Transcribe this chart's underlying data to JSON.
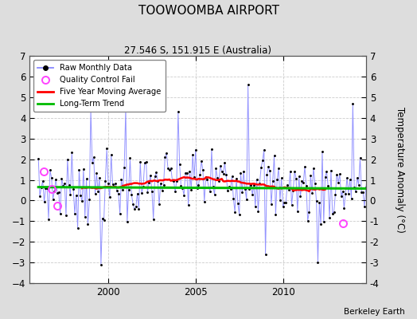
{
  "title": "TOOWOOMBA AIRPORT",
  "subtitle": "27.546 S, 151.915 E (Australia)",
  "ylabel": "Temperature Anomaly (°C)",
  "attribution": "Berkeley Earth",
  "ylim": [
    -4,
    7
  ],
  "yticks": [
    -4,
    -3,
    -2,
    -1,
    0,
    1,
    2,
    3,
    4,
    5,
    6,
    7
  ],
  "x_start_year": 1995.5,
  "x_end_year": 2014.75,
  "xticks": [
    2000,
    2005,
    2010
  ],
  "bg_color": "#dddddd",
  "plot_bg_color": "#ffffff",
  "raw_line_color": "#8888ff",
  "raw_marker_color": "#000000",
  "moving_avg_color": "#ff0000",
  "trend_color": "#00bb00",
  "qc_fail_color": "#ff44ff",
  "long_trend_y0": 0.65,
  "long_trend_y1": 0.58,
  "qc_fail_points": [
    [
      1996.33,
      1.4
    ],
    [
      1996.75,
      0.55
    ],
    [
      1997.08,
      -0.25
    ],
    [
      2013.42,
      -1.1
    ]
  ]
}
